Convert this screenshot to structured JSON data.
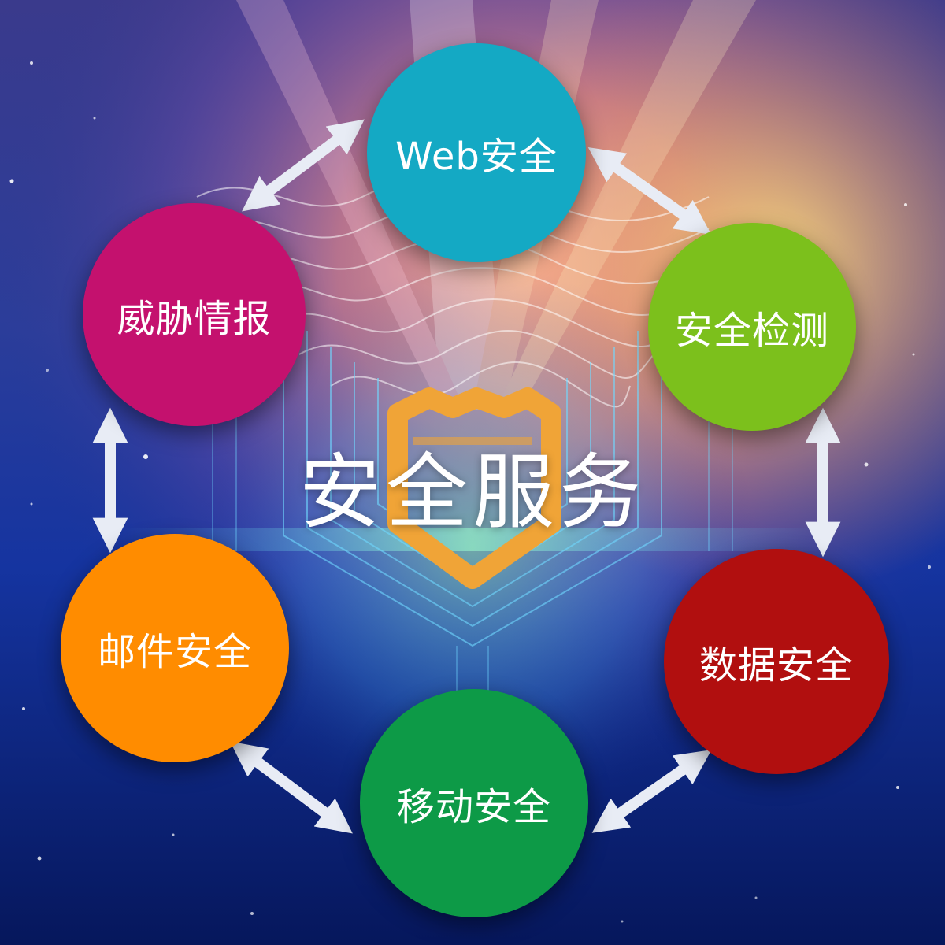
{
  "diagram": {
    "center_title": "安全服务",
    "nodes": [
      {
        "id": "web",
        "label": "Web安全",
        "color": "#14a9c4"
      },
      {
        "id": "detect",
        "label": "安全检测",
        "color": "#7cc01c"
      },
      {
        "id": "data",
        "label": "数据安全",
        "color": "#b10f0f"
      },
      {
        "id": "mobile",
        "label": "移动安全",
        "color": "#0d9a47"
      },
      {
        "id": "mail",
        "label": "邮件安全",
        "color": "#ff8c00"
      },
      {
        "id": "threat",
        "label": "威胁情报",
        "color": "#c4116e"
      }
    ],
    "connections": [
      [
        "threat",
        "web"
      ],
      [
        "web",
        "detect"
      ],
      [
        "detect",
        "data"
      ],
      [
        "data",
        "mobile"
      ],
      [
        "mobile",
        "mail"
      ],
      [
        "mail",
        "threat"
      ]
    ],
    "colors": {
      "arrow": "#e8ecf5",
      "shield": "#f0a437",
      "circuit_glow": "#6fd8ff"
    }
  }
}
